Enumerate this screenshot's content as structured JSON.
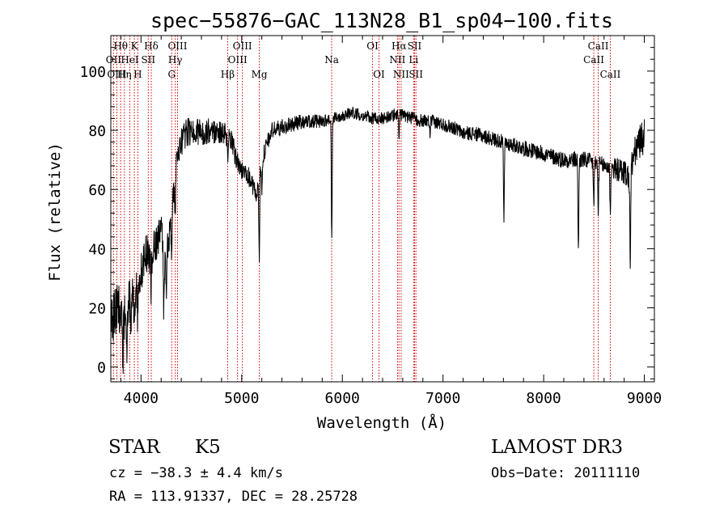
{
  "chart_data": {
    "type": "line",
    "title": "spec−55876−GAC_113N28_B1_sp04−100.fits",
    "xlabel": "Wavelength (Å)",
    "ylabel": "Flux (relative)",
    "xlim": [
      3700,
      9100
    ],
    "ylim": [
      -5,
      112
    ],
    "xticks": [
      4000,
      5000,
      6000,
      7000,
      8000,
      9000
    ],
    "xtick_labels": [
      "4000",
      "5000",
      "6000",
      "7000",
      "8000",
      "9000"
    ],
    "yticks": [
      0,
      20,
      40,
      60,
      80,
      100
    ],
    "ytick_labels": [
      "0",
      "20",
      "40",
      "60",
      "80",
      "100"
    ],
    "grid": false,
    "legend": "none",
    "continuum": [
      [
        3700,
        14
      ],
      [
        3760,
        20
      ],
      [
        3800,
        18
      ],
      [
        3850,
        16
      ],
      [
        3900,
        25
      ],
      [
        3960,
        28
      ],
      [
        4000,
        32
      ],
      [
        4050,
        38
      ],
      [
        4100,
        38
      ],
      [
        4150,
        42
      ],
      [
        4200,
        46
      ],
      [
        4250,
        36
      ],
      [
        4300,
        50
      ],
      [
        4350,
        68
      ],
      [
        4400,
        76
      ],
      [
        4450,
        79
      ],
      [
        4500,
        80
      ],
      [
        4600,
        79
      ],
      [
        4700,
        80
      ],
      [
        4800,
        79
      ],
      [
        4850,
        78
      ],
      [
        4900,
        76
      ],
      [
        4950,
        70
      ],
      [
        5000,
        66
      ],
      [
        5050,
        66
      ],
      [
        5100,
        62
      ],
      [
        5150,
        58
      ],
      [
        5200,
        70
      ],
      [
        5300,
        80
      ],
      [
        5400,
        81
      ],
      [
        5500,
        82
      ],
      [
        5600,
        83
      ],
      [
        5700,
        83
      ],
      [
        5800,
        83
      ],
      [
        5900,
        84
      ],
      [
        6000,
        85
      ],
      [
        6100,
        86
      ],
      [
        6200,
        85
      ],
      [
        6300,
        84
      ],
      [
        6400,
        84
      ],
      [
        6500,
        85
      ],
      [
        6560,
        86
      ],
      [
        6600,
        85
      ],
      [
        6700,
        84
      ],
      [
        6800,
        83
      ],
      [
        6900,
        83
      ],
      [
        7000,
        82
      ],
      [
        7100,
        81
      ],
      [
        7200,
        79
      ],
      [
        7300,
        79
      ],
      [
        7400,
        78
      ],
      [
        7500,
        77
      ],
      [
        7600,
        76
      ],
      [
        7700,
        75
      ],
      [
        7800,
        74
      ],
      [
        7900,
        73
      ],
      [
        8000,
        72
      ],
      [
        8100,
        71
      ],
      [
        8200,
        70
      ],
      [
        8300,
        70
      ],
      [
        8400,
        70
      ],
      [
        8500,
        69
      ],
      [
        8600,
        68
      ],
      [
        8700,
        67
      ],
      [
        8800,
        66
      ],
      [
        8850,
        64
      ],
      [
        8900,
        72
      ],
      [
        8950,
        76
      ],
      [
        9000,
        78
      ]
    ],
    "absorption_features": [
      [
        3820,
        14
      ],
      [
        3860,
        12
      ],
      [
        3900,
        8
      ],
      [
        3934,
        15
      ],
      [
        3968,
        12
      ],
      [
        4101,
        12
      ],
      [
        4227,
        22
      ],
      [
        4250,
        10
      ],
      [
        4305,
        16
      ],
      [
        4340,
        12
      ],
      [
        4861,
        8
      ],
      [
        5175,
        26
      ],
      [
        5200,
        10
      ],
      [
        5895,
        40
      ],
      [
        6563,
        8
      ],
      [
        6870,
        4
      ],
      [
        7605,
        26
      ],
      [
        8345,
        30
      ],
      [
        8498,
        14
      ],
      [
        8542,
        16
      ],
      [
        8662,
        14
      ],
      [
        8860,
        30
      ]
    ],
    "noise_amplitude": [
      [
        3700,
        9
      ],
      [
        4400,
        5
      ],
      [
        5200,
        3
      ],
      [
        6000,
        2
      ],
      [
        7500,
        2.5
      ],
      [
        8600,
        3
      ],
      [
        9000,
        6
      ]
    ],
    "spectral_lines": [
      {
        "name": "Hθ",
        "wavelength": 3798,
        "row": 1
      },
      {
        "name": "OII",
        "wavelength": 3727,
        "row": 2
      },
      {
        "name": "OIII",
        "wavelength": 3760,
        "row": 3
      },
      {
        "name": "K",
        "wavelength": 3934,
        "row": 1
      },
      {
        "name": "HeI",
        "wavelength": 3889,
        "row": 2
      },
      {
        "name": "Hη",
        "wavelength": 3835,
        "row": 3
      },
      {
        "name": "Hδ",
        "wavelength": 4102,
        "row": 1
      },
      {
        "name": "SII",
        "wavelength": 4072,
        "row": 2
      },
      {
        "name": "H",
        "wavelength": 3968,
        "row": 3
      },
      {
        "name": "OIII",
        "wavelength": 4363,
        "row": 1
      },
      {
        "name": "Hγ",
        "wavelength": 4340,
        "row": 2
      },
      {
        "name": "G",
        "wavelength": 4305,
        "row": 3
      },
      {
        "name": "OIII",
        "wavelength": 5007,
        "row": 1
      },
      {
        "name": "OIII",
        "wavelength": 4959,
        "row": 2
      },
      {
        "name": "Hβ",
        "wavelength": 4861,
        "row": 3
      },
      {
        "name": "Mg",
        "wavelength": 5175,
        "row": 3
      },
      {
        "name": "Na",
        "wavelength": 5894,
        "row": 2
      },
      {
        "name": "OI",
        "wavelength": 6300,
        "row": 1
      },
      {
        "name": "OI",
        "wavelength": 6364,
        "row": 3
      },
      {
        "name": "Hα",
        "wavelength": 6563,
        "row": 1
      },
      {
        "name": "NII",
        "wavelength": 6548,
        "row": 2
      },
      {
        "name": "NII",
        "wavelength": 6584,
        "row": 3
      },
      {
        "name": "SII",
        "wavelength": 6717,
        "row": 1
      },
      {
        "name": "Li",
        "wavelength": 6708,
        "row": 2
      },
      {
        "name": "SII",
        "wavelength": 6731,
        "row": 3
      },
      {
        "name": "CaII",
        "wavelength": 8542,
        "row": 1
      },
      {
        "name": "CaII",
        "wavelength": 8498,
        "row": 2
      },
      {
        "name": "CaII",
        "wavelength": 8662,
        "row": 3
      }
    ]
  },
  "info": {
    "class_label": "STAR",
    "subclass": "K5",
    "survey": "LAMOST DR3",
    "cz": "cz = −38.3 ± 4.4 km/s",
    "obs_date": "Obs−Date: 20111110",
    "coords": "RA = 113.91337, DEC =  28.25728"
  }
}
